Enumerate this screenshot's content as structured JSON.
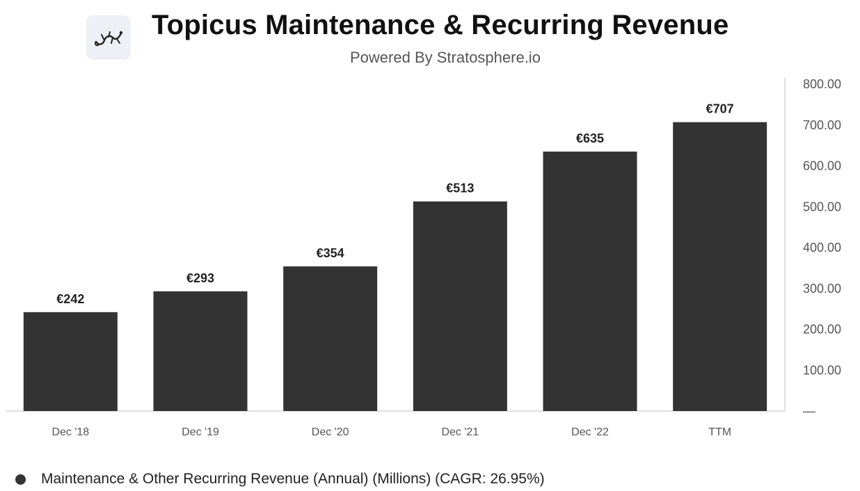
{
  "header": {
    "title": "Topicus Maintenance & Recurring Revenue",
    "subtitle": "Powered By Stratosphere.io",
    "logo_icon": "lizard-logo-icon"
  },
  "colors": {
    "bar": "#333333",
    "axis": "#cccccc",
    "tick_text": "#555555",
    "label_text": "#222222"
  },
  "chart_data": {
    "type": "bar",
    "title": "Topicus Maintenance & Recurring Revenue",
    "subtitle": "Powered By Stratosphere.io",
    "categories": [
      "Dec '18",
      "Dec '19",
      "Dec '20",
      "Dec '21",
      "Dec '22",
      "TTM"
    ],
    "series": [
      {
        "name": "Maintenance & Other Recurring Revenue (Annual) (Millions) (CAGR: 26.95%)",
        "values": [
          242,
          293,
          354,
          513,
          635,
          707
        ],
        "data_labels": [
          "€242",
          "€293",
          "€354",
          "€513",
          "€635",
          "€707"
        ]
      }
    ],
    "ylim": [
      0,
      800
    ],
    "yticks": [
      0,
      100,
      200,
      300,
      400,
      500,
      600,
      700,
      800
    ],
    "ytick_labels": [
      "—",
      "100.00",
      "200.00",
      "300.00",
      "400.00",
      "500.00",
      "600.00",
      "700.00",
      "800.00"
    ],
    "y_axis_side": "right",
    "grid": false,
    "legend_position": "bottom-left"
  },
  "legend": {
    "label": "Maintenance & Other Recurring Revenue (Annual) (Millions) (CAGR: 26.95%)"
  }
}
